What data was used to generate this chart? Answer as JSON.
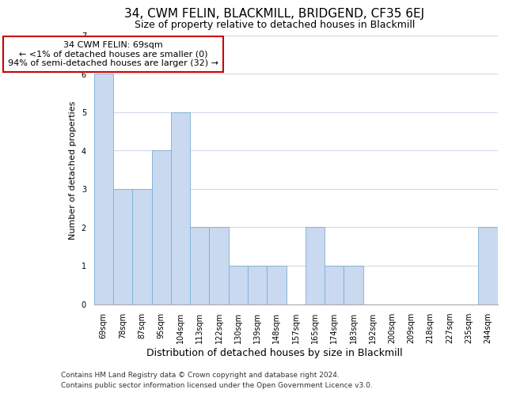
{
  "title": "34, CWM FELIN, BLACKMILL, BRIDGEND, CF35 6EJ",
  "subtitle": "Size of property relative to detached houses in Blackmill",
  "xlabel_bottom": "Distribution of detached houses by size in Blackmill",
  "ylabel": "Number of detached properties",
  "categories": [
    "69sqm",
    "78sqm",
    "87sqm",
    "95sqm",
    "104sqm",
    "113sqm",
    "122sqm",
    "130sqm",
    "139sqm",
    "148sqm",
    "157sqm",
    "165sqm",
    "174sqm",
    "183sqm",
    "192sqm",
    "200sqm",
    "209sqm",
    "218sqm",
    "227sqm",
    "235sqm",
    "244sqm"
  ],
  "values": [
    6,
    3,
    3,
    4,
    5,
    2,
    2,
    1,
    1,
    1,
    0,
    2,
    1,
    1,
    0,
    0,
    0,
    0,
    0,
    0,
    2
  ],
  "bar_color_normal": "#c9d9f0",
  "bar_edge_color": "#7aafd4",
  "ylim": [
    0,
    7
  ],
  "yticks": [
    0,
    1,
    2,
    3,
    4,
    5,
    6,
    7
  ],
  "annotation_text": "34 CWM FELIN: 69sqm\n← <1% of detached houses are smaller (0)\n94% of semi-detached houses are larger (32) →",
  "annotation_box_color": "#ffffff",
  "annotation_box_edge": "#cc0000",
  "footer_line1": "Contains HM Land Registry data © Crown copyright and database right 2024.",
  "footer_line2": "Contains public sector information licensed under the Open Government Licence v3.0.",
  "bg_color": "#ffffff",
  "plot_bg_color": "#ffffff",
  "grid_color": "#d0d8e8",
  "title_fontsize": 11,
  "subtitle_fontsize": 9,
  "ylabel_fontsize": 8,
  "tick_fontsize": 7,
  "footer_fontsize": 6.5,
  "xlabel_fontsize": 9
}
